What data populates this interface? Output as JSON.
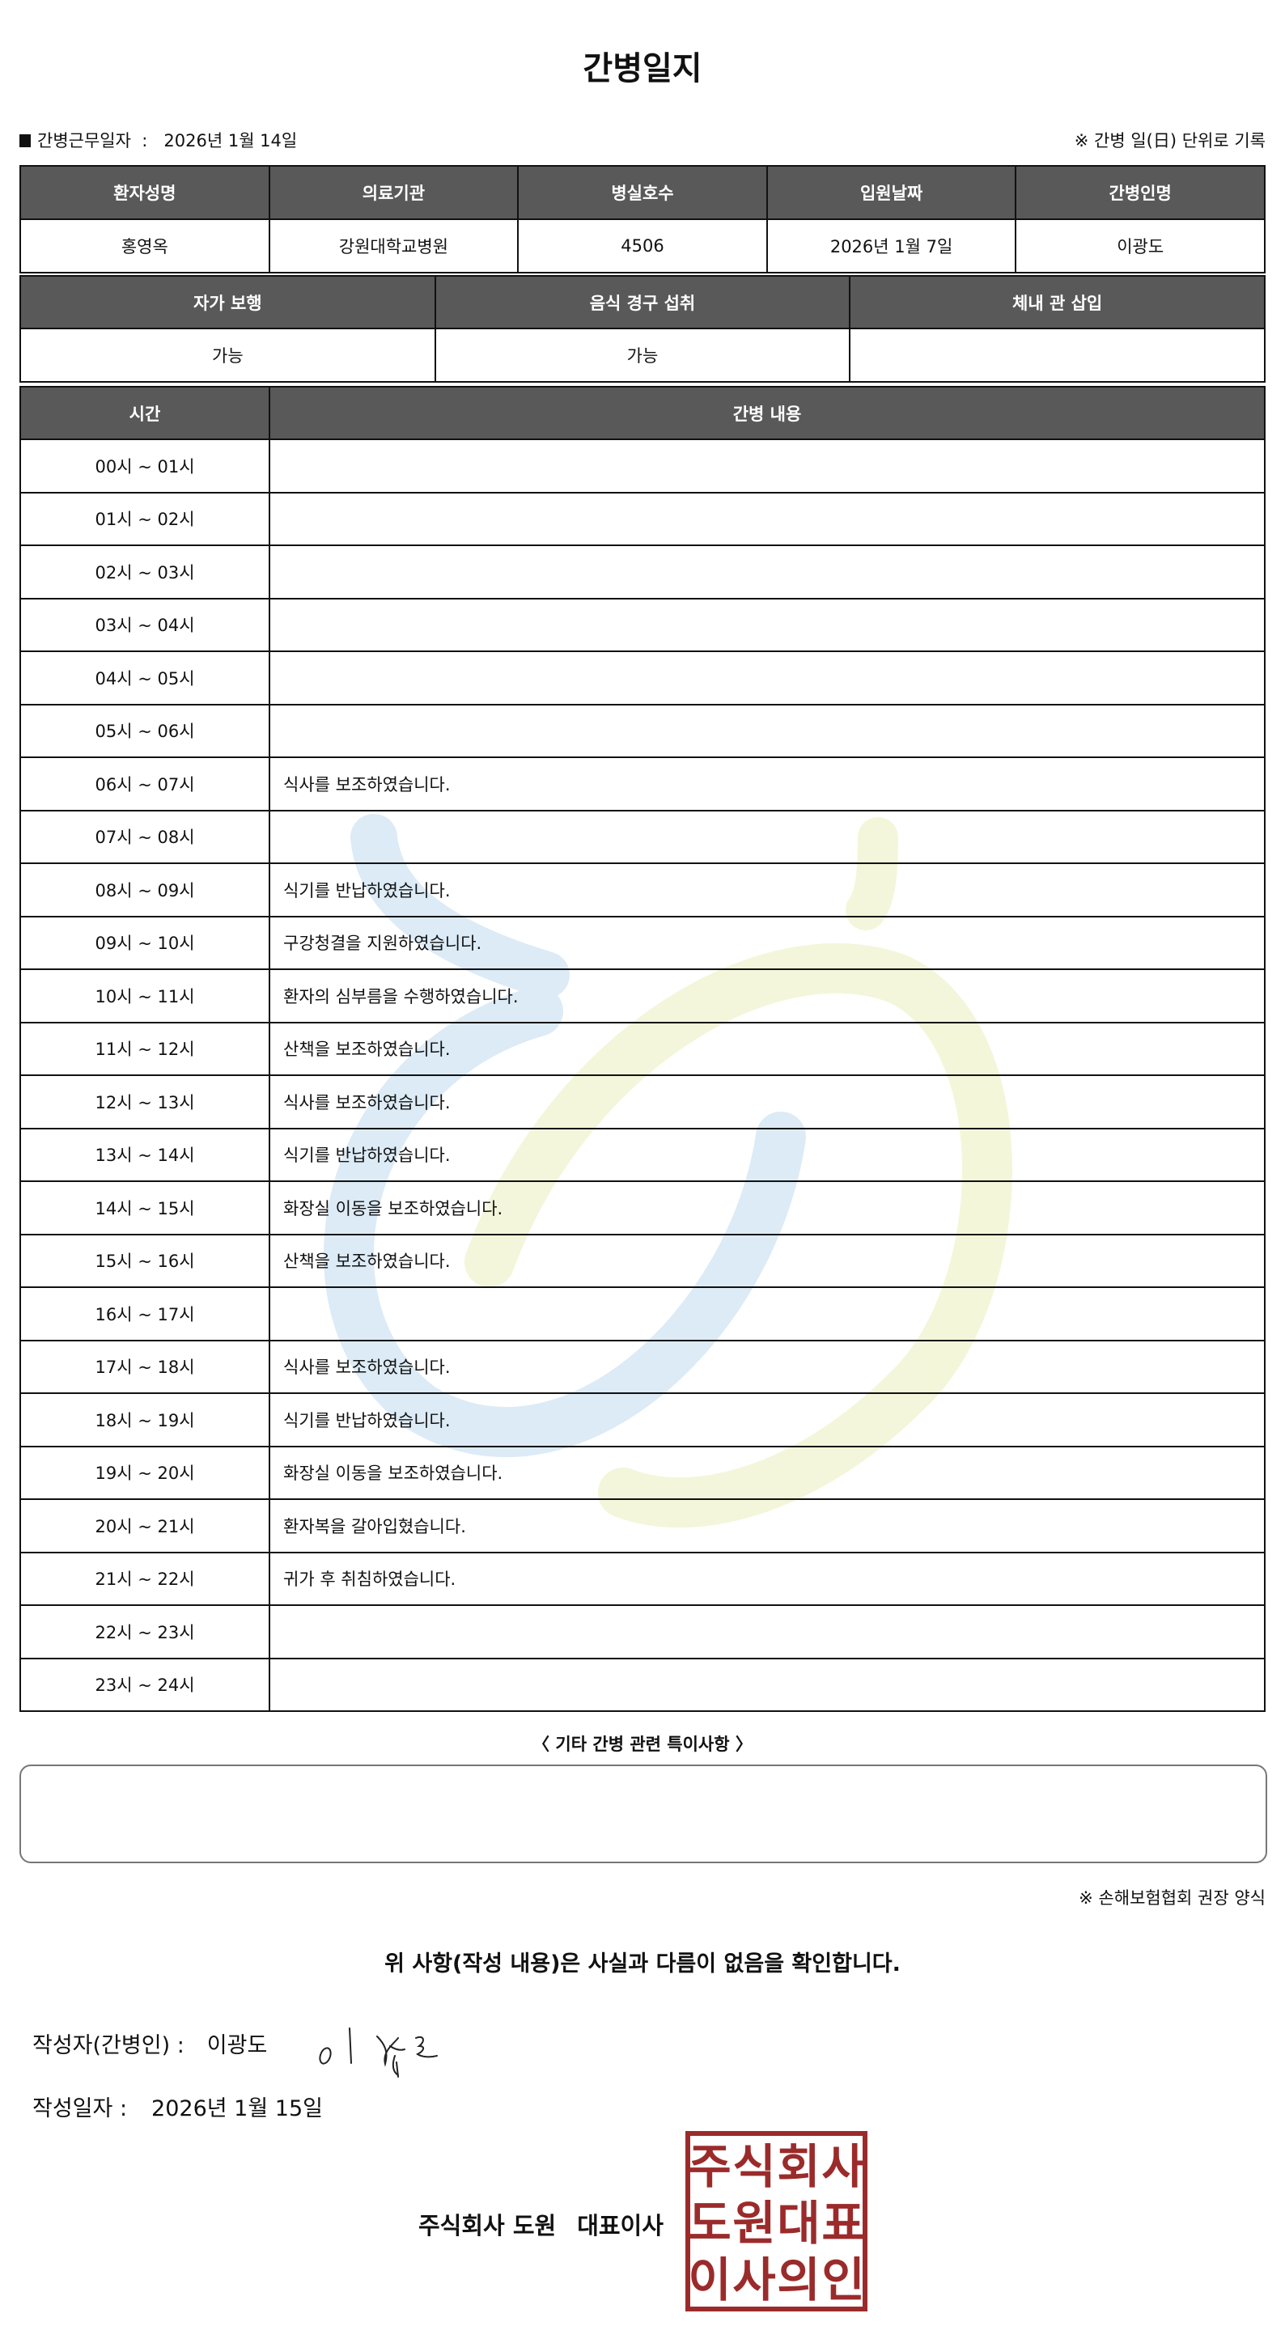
{
  "title": "간병일지",
  "info": {
    "work_date_label": "간병근무일자",
    "separator": ":",
    "work_date": "2026년 1월 14일",
    "note": "※ 간병 일(日) 단위로 기록"
  },
  "patient_table": {
    "headers": [
      "환자성명",
      "의료기관",
      "병실호수",
      "입원날짜",
      "간병인명"
    ],
    "values": [
      "홍영옥",
      "강원대학교병원",
      "4506",
      "2026년 1월 7일",
      "이광도"
    ]
  },
  "status_table": {
    "headers": [
      "자가 보행",
      "음식 경구 섭취",
      "체내 관 삽입"
    ],
    "values": [
      "가능",
      "가능",
      ""
    ]
  },
  "care_log": {
    "headers": [
      "시간",
      "간병 내용"
    ],
    "rows": [
      {
        "time": "00시 ~ 01시",
        "content": ""
      },
      {
        "time": "01시 ~ 02시",
        "content": ""
      },
      {
        "time": "02시 ~ 03시",
        "content": ""
      },
      {
        "time": "03시 ~ 04시",
        "content": ""
      },
      {
        "time": "04시 ~ 05시",
        "content": ""
      },
      {
        "time": "05시 ~ 06시",
        "content": ""
      },
      {
        "time": "06시 ~ 07시",
        "content": "식사를 보조하였습니다."
      },
      {
        "time": "07시 ~ 08시",
        "content": ""
      },
      {
        "time": "08시 ~ 09시",
        "content": "식기를 반납하였습니다."
      },
      {
        "time": "09시 ~ 10시",
        "content": "구강청결을 지원하였습니다."
      },
      {
        "time": "10시 ~ 11시",
        "content": "환자의 심부름을 수행하였습니다."
      },
      {
        "time": "11시 ~ 12시",
        "content": "산책을 보조하였습니다."
      },
      {
        "time": "12시 ~ 13시",
        "content": "식사를 보조하였습니다."
      },
      {
        "time": "13시 ~ 14시",
        "content": "식기를 반납하였습니다."
      },
      {
        "time": "14시 ~ 15시",
        "content": "화장실 이동을 보조하였습니다."
      },
      {
        "time": "15시 ~ 16시",
        "content": "산책을 보조하였습니다."
      },
      {
        "time": "16시 ~ 17시",
        "content": ""
      },
      {
        "time": "17시 ~ 18시",
        "content": "식사를 보조하였습니다."
      },
      {
        "time": "18시 ~ 19시",
        "content": "식기를 반납하였습니다."
      },
      {
        "time": "19시 ~ 20시",
        "content": "화장실 이동을 보조하였습니다."
      },
      {
        "time": "20시 ~ 21시",
        "content": "환자복을 갈아입혔습니다."
      },
      {
        "time": "21시 ~ 22시",
        "content": "귀가 후 취침하였습니다."
      },
      {
        "time": "22시 ~ 23시",
        "content": ""
      },
      {
        "time": "23시 ~ 24시",
        "content": ""
      }
    ]
  },
  "notes": {
    "label": "〈 기타 간병 관련 특이사항 〉",
    "value": ""
  },
  "footer_note": "※ 손해보험협회 권장 양식",
  "confirm_text": "위 사항(작성 내용)은 사실과 다름이 없음을 확인합니다.",
  "writer": {
    "label": "작성자(간병인) :",
    "name": "이광도"
  },
  "written_date": {
    "label": "작성일자 :",
    "value": "2026년 1월 15일"
  },
  "company": {
    "name": "주식회사 도원",
    "title": "대표이사"
  },
  "stamp": {
    "text_lines": [
      "주식회사",
      "도원대표",
      "이사의인"
    ],
    "color": "#9b2b2b"
  },
  "colors": {
    "header_bg": "#595959",
    "watermark_blue": "#d6e8f5",
    "watermark_yellow": "#f4f6d6"
  }
}
